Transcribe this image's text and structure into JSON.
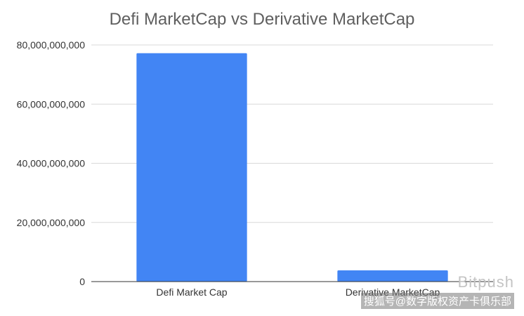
{
  "chart_data": {
    "type": "bar",
    "title": "Defi MarketCap vs Derivative MarketCap",
    "categories": [
      "Defi Market Cap",
      "Derivative MarketCap"
    ],
    "values": [
      77200000000,
      3800000000
    ],
    "ylim": [
      0,
      80000000000
    ],
    "yticks": [
      0,
      20000000000,
      40000000000,
      60000000000,
      80000000000
    ],
    "ytick_labels": [
      "0",
      "20,000,000,000",
      "40,000,000,000",
      "60,000,000,000",
      "80,000,000,000"
    ],
    "xlabel": "",
    "ylabel": "",
    "grid": true,
    "bar_color": "#4285f4",
    "grid_color": "#d9d9d9"
  },
  "watermark": {
    "brand": "Bitpush",
    "line": "搜狐号@数字版权资产卡俱乐部"
  }
}
